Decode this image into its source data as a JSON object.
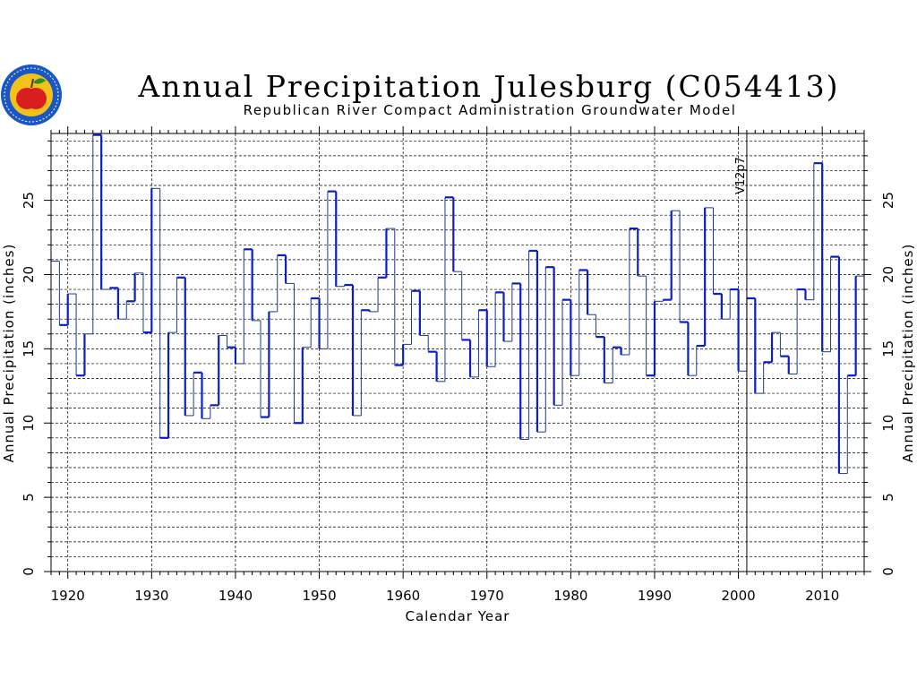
{
  "logo": {
    "name": "rrca-apple-seal-logo",
    "colors": [
      "#1a56c4",
      "#f2c21b",
      "#d81e1e",
      "#2e8b2e"
    ]
  },
  "chart_data": {
    "type": "line",
    "style": "step",
    "title": "Annual Precipitation Julesburg (C054413)",
    "subtitle": "Republican River Compact Administration Groundwater Model",
    "xlabel": "Calendar Year",
    "ylabel": "Annual Precipitation (inches)",
    "ylabel_right": "Annual Precipitation (inches)",
    "xlim": [
      1918,
      2015
    ],
    "ylim": [
      0,
      29.5
    ],
    "xticks": [
      1920,
      1930,
      1940,
      1950,
      1960,
      1970,
      1980,
      1990,
      2000,
      2010
    ],
    "xtick_labels": [
      "1920",
      "1930",
      "1940",
      "1950",
      "1960",
      "1970",
      "1980",
      "1990",
      "2000",
      "2010"
    ],
    "yticks": [
      0,
      5,
      10,
      15,
      20,
      25
    ],
    "ytick_labels": [
      "0",
      "5",
      "10",
      "15",
      "20",
      "25"
    ],
    "grid": true,
    "annotation": {
      "text": "V12p7",
      "x": 2001
    },
    "line_colors": {
      "thin": "#1e3a8a",
      "thick": "#0a1fc8"
    },
    "series": [
      {
        "x": [
          1918,
          1919,
          1920,
          1921,
          1922,
          1923,
          1924,
          1925,
          1926,
          1927,
          1928,
          1929,
          1930,
          1931,
          1932,
          1933,
          1934,
          1935,
          1936,
          1937,
          1938,
          1939,
          1940,
          1941,
          1942,
          1943,
          1944,
          1945,
          1946,
          1947,
          1948,
          1949,
          1950,
          1951,
          1952,
          1953,
          1954,
          1955,
          1956,
          1957,
          1958,
          1959,
          1960,
          1961,
          1962,
          1963,
          1964,
          1965,
          1966,
          1967,
          1968,
          1969,
          1970,
          1971,
          1972,
          1973,
          1974,
          1975,
          1976,
          1977,
          1978,
          1979,
          1980,
          1981,
          1982,
          1983,
          1984,
          1985,
          1986,
          1987,
          1988,
          1989,
          1990,
          1991,
          1992,
          1993,
          1994,
          1995,
          1996,
          1997,
          1998,
          1999,
          2000,
          2001,
          2002,
          2003,
          2004,
          2005,
          2006,
          2007,
          2008,
          2009,
          2010,
          2011,
          2012,
          2013,
          2014
        ],
        "values": [
          20.9,
          16.6,
          18.7,
          13.2,
          16.0,
          29.4,
          19.0,
          19.1,
          17.0,
          18.2,
          20.1,
          16.1,
          25.8,
          9.0,
          16.1,
          19.8,
          10.5,
          13.4,
          10.3,
          11.2,
          15.9,
          15.1,
          14.0,
          21.7,
          16.9,
          10.4,
          17.5,
          21.3,
          19.4,
          10.0,
          15.1,
          18.4,
          15.0,
          25.6,
          19.2,
          19.3,
          10.5,
          17.6,
          17.5,
          19.8,
          23.1,
          13.9,
          15.3,
          18.9,
          15.9,
          14.8,
          12.8,
          25.2,
          20.2,
          15.6,
          13.1,
          17.6,
          13.8,
          18.8,
          15.5,
          19.4,
          8.9,
          21.6,
          9.4,
          20.5,
          11.2,
          18.3,
          13.2,
          20.3,
          17.3,
          15.8,
          12.7,
          15.1,
          14.6,
          23.1,
          19.9,
          13.2,
          18.2,
          18.3,
          24.3,
          16.8,
          13.2,
          15.2,
          24.5,
          18.7,
          17.0,
          19.0,
          13.5,
          18.4,
          12.0,
          14.1,
          16.1,
          14.5,
          13.3,
          19.0,
          18.3,
          27.5,
          14.8,
          21.2,
          6.6,
          13.2,
          19.9
        ]
      }
    ]
  }
}
